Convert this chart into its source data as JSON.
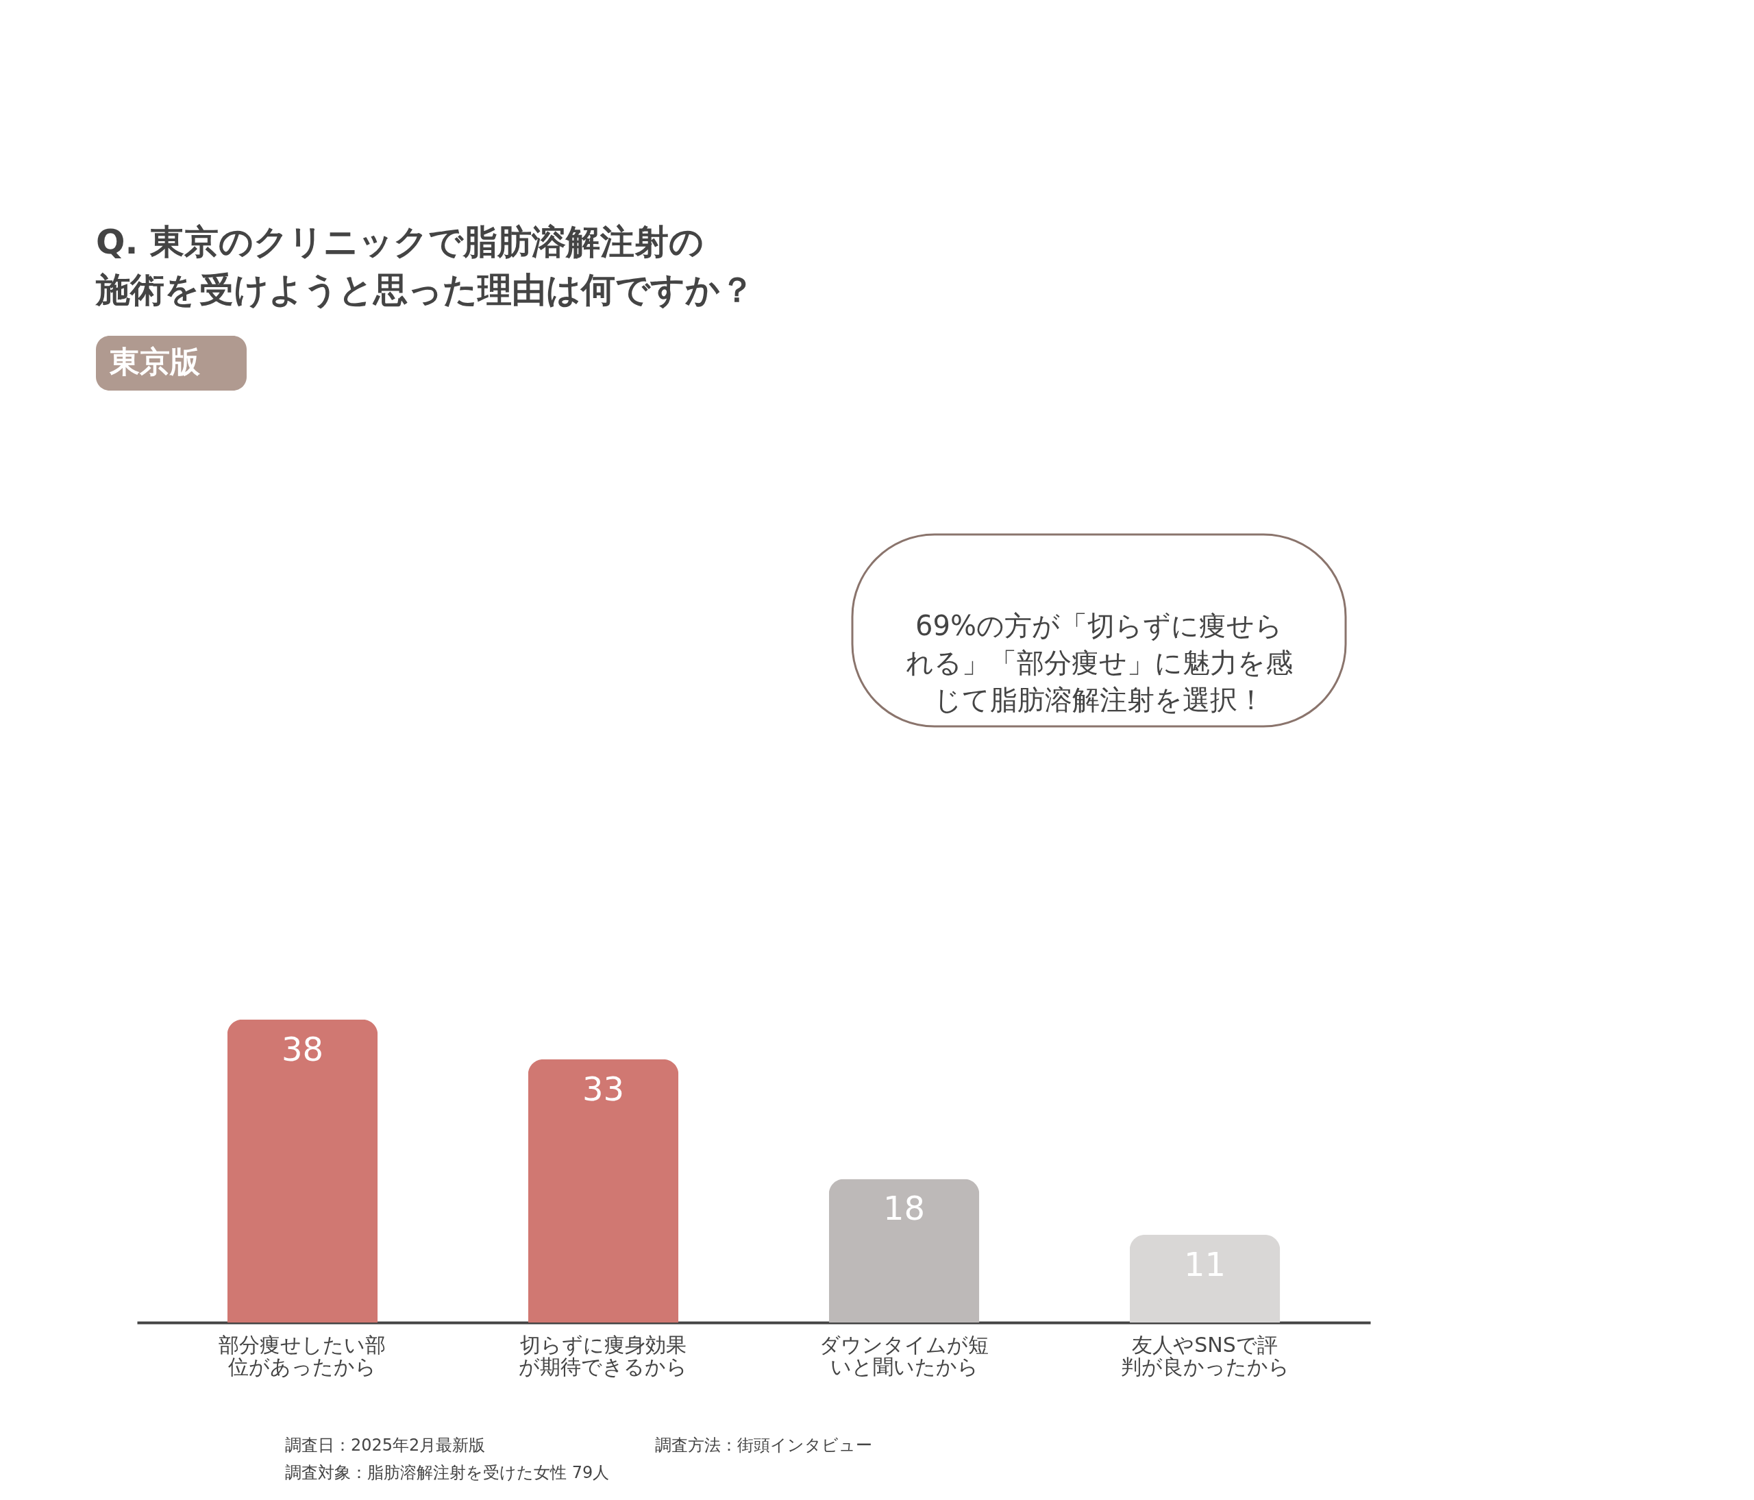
{
  "chart_data": {
    "type": "bar",
    "title": "Q. 東京のクリニックで脂肪溶解注射の施術を受けようと思った理由は何ですか？",
    "categories": [
      "部分痩せしたい部位があったから",
      "切らずに痩身効果が期待できるから",
      "ダウンタイムが短いと聞いたから",
      "友人やSNSで評判が良かったから"
    ],
    "values": [
      38,
      33,
      18,
      11
    ],
    "colors": [
      "#d07872",
      "#d07872",
      "#bdb9b8",
      "#d9d7d6"
    ],
    "data_labels": true,
    "grid": false,
    "annotations": [
      "東京版",
      "69%の方が「切らずに痩せられる」「部分痩せ」に魅力を感じて脂肪溶解注射を選択！",
      "調査日：2025年2月最新版",
      "調査方法：街頭インタビュー",
      "調査対象：脂肪溶解注射を受けた女性 79人"
    ]
  }
}
